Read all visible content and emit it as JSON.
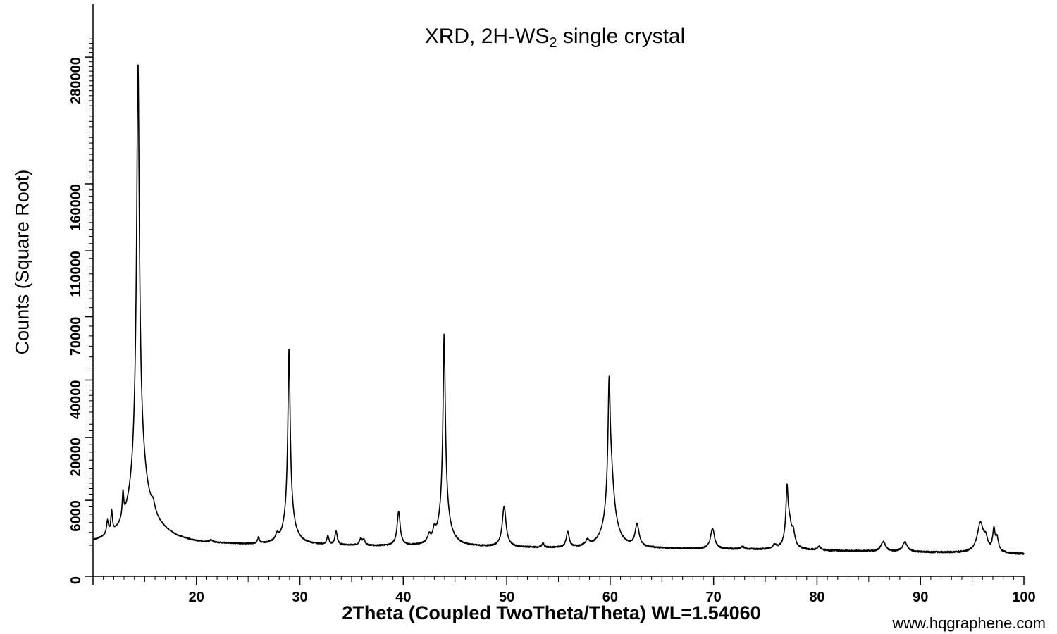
{
  "chart_data": {
    "type": "line",
    "title": "XRD, 2H-WS",
    "title_subscript": "2",
    "title_suffix": " single crystal",
    "xlabel": "2Theta (Coupled TwoTheta/Theta) WL=1.54060",
    "ylabel": "Counts (Square Root)",
    "y_scale": "square-root",
    "xlim": [
      10,
      100
    ],
    "ylim": [
      0,
      340000
    ],
    "x_ticks": [
      20,
      30,
      40,
      50,
      60,
      70,
      80,
      90,
      100
    ],
    "y_ticks": [
      {
        "value": 0,
        "label": "0"
      },
      {
        "value": 6000,
        "label": "6000"
      },
      {
        "value": 20000,
        "label": "20000"
      },
      {
        "value": 40000,
        "label": "40000"
      },
      {
        "value": 70000,
        "label": "70000"
      },
      {
        "value": 110000,
        "label": "110000"
      },
      {
        "value": 160000,
        "label": "160000"
      },
      {
        "value": 280000,
        "label": "280000"
      }
    ],
    "grid": false,
    "series": [
      {
        "line_color": "#000000",
        "baseline": [
          [
            10.0,
            1050
          ],
          [
            12.0,
            1150
          ],
          [
            14.0,
            1400
          ],
          [
            16.0,
            1800
          ],
          [
            18.0,
            1300
          ],
          [
            20.0,
            1100
          ],
          [
            25.0,
            1000
          ],
          [
            30.0,
            1000
          ],
          [
            35.0,
            950
          ],
          [
            40.0,
            900
          ],
          [
            45.0,
            900
          ],
          [
            50.0,
            850
          ],
          [
            55.0,
            800
          ],
          [
            60.0,
            780
          ],
          [
            65.0,
            780
          ],
          [
            70.0,
            760
          ],
          [
            75.0,
            720
          ],
          [
            80.0,
            680
          ],
          [
            85.0,
            640
          ],
          [
            90.0,
            600
          ],
          [
            95.0,
            560
          ],
          [
            100.0,
            500
          ]
        ],
        "peaks": [
          {
            "x": 11.4,
            "y": 1400,
            "w": 0.1
          },
          {
            "x": 11.8,
            "y": 2500,
            "w": 0.08
          },
          {
            "x": 12.9,
            "y": 3800,
            "w": 0.08
          },
          {
            "x": 14.35,
            "y": 265000,
            "w": 0.12
          },
          {
            "x": 14.6,
            "y": 8000,
            "w": 0.6
          },
          {
            "x": 15.8,
            "y": 1300,
            "w": 0.2
          },
          {
            "x": 21.4,
            "y": 150,
            "w": 0.15
          },
          {
            "x": 26.0,
            "y": 450,
            "w": 0.1
          },
          {
            "x": 27.8,
            "y": 500,
            "w": 0.15
          },
          {
            "x": 28.95,
            "y": 51000,
            "w": 0.1
          },
          {
            "x": 29.05,
            "y": 1900,
            "w": 0.4
          },
          {
            "x": 32.7,
            "y": 700,
            "w": 0.1
          },
          {
            "x": 33.5,
            "y": 1100,
            "w": 0.12
          },
          {
            "x": 35.9,
            "y": 500,
            "w": 0.15
          },
          {
            "x": 36.2,
            "y": 350,
            "w": 0.12
          },
          {
            "x": 39.55,
            "y": 3400,
            "w": 0.15
          },
          {
            "x": 42.5,
            "y": 600,
            "w": 0.15
          },
          {
            "x": 43.0,
            "y": 900,
            "w": 0.15
          },
          {
            "x": 43.95,
            "y": 58000,
            "w": 0.1
          },
          {
            "x": 44.0,
            "y": 2500,
            "w": 0.4
          },
          {
            "x": 49.75,
            "y": 4200,
            "w": 0.18
          },
          {
            "x": 53.5,
            "y": 300,
            "w": 0.1
          },
          {
            "x": 55.9,
            "y": 1200,
            "w": 0.15
          },
          {
            "x": 57.8,
            "y": 400,
            "w": 0.2
          },
          {
            "x": 59.9,
            "y": 32000,
            "w": 0.1
          },
          {
            "x": 60.05,
            "y": 11000,
            "w": 0.3
          },
          {
            "x": 62.6,
            "y": 1900,
            "w": 0.2
          },
          {
            "x": 69.9,
            "y": 1600,
            "w": 0.2
          },
          {
            "x": 72.8,
            "y": 150,
            "w": 0.2
          },
          {
            "x": 75.9,
            "y": 250,
            "w": 0.2
          },
          {
            "x": 77.1,
            "y": 6600,
            "w": 0.1
          },
          {
            "x": 77.3,
            "y": 2400,
            "w": 0.25
          },
          {
            "x": 77.7,
            "y": 1000,
            "w": 0.15
          },
          {
            "x": 80.2,
            "y": 200,
            "w": 0.2
          },
          {
            "x": 86.4,
            "y": 600,
            "w": 0.25
          },
          {
            "x": 88.5,
            "y": 600,
            "w": 0.25
          },
          {
            "x": 95.8,
            "y": 2400,
            "w": 0.3
          },
          {
            "x": 96.3,
            "y": 800,
            "w": 0.2
          },
          {
            "x": 97.1,
            "y": 1700,
            "w": 0.12
          },
          {
            "x": 97.4,
            "y": 900,
            "w": 0.15
          }
        ]
      }
    ]
  },
  "watermark": "www.hqgraphene.com"
}
